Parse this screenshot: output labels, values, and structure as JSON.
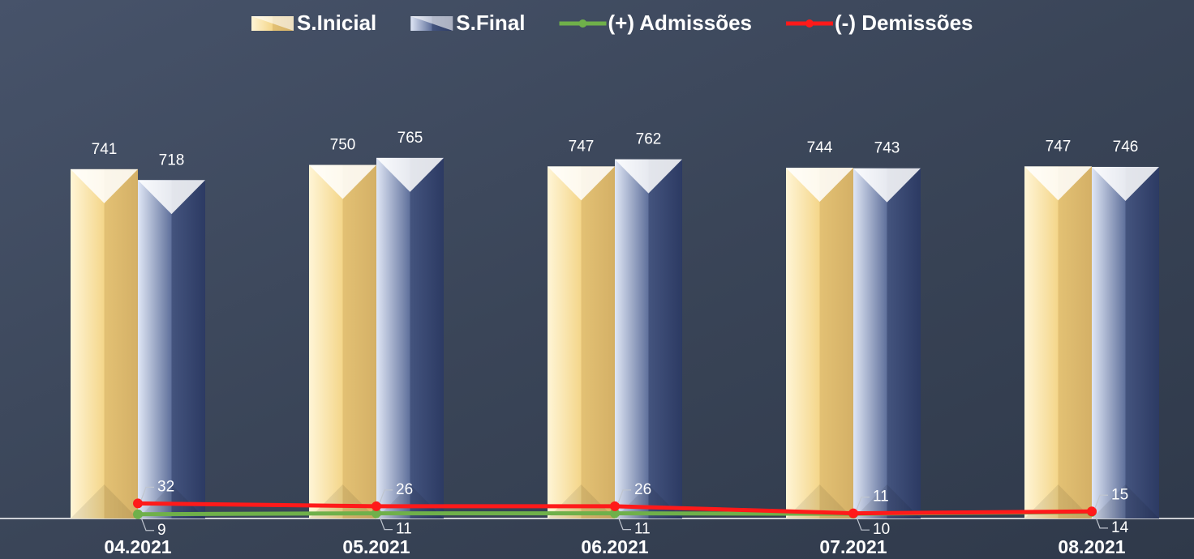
{
  "chart_data": {
    "type": "bar",
    "categories": [
      "04.2021",
      "05.2021",
      "06.2021",
      "07.2021",
      "08.2021"
    ],
    "ylim": [
      0,
      1100
    ],
    "legend": "top",
    "series": [
      {
        "name": "S.Inicial",
        "type": "bar",
        "color": "#f5d98a",
        "values": [
          741,
          750,
          747,
          744,
          747
        ]
      },
      {
        "name": "S.Final",
        "type": "bar",
        "color": "#5a6b96",
        "values": [
          718,
          765,
          762,
          743,
          746
        ]
      },
      {
        "name": "(+) Admissões",
        "type": "line",
        "color": "#6fb04a",
        "values": [
          9,
          11,
          11,
          10,
          14
        ]
      },
      {
        "name": "(-) Demissões",
        "type": "line",
        "color": "#ff1a1a",
        "values": [
          32,
          26,
          26,
          11,
          15
        ]
      }
    ]
  }
}
